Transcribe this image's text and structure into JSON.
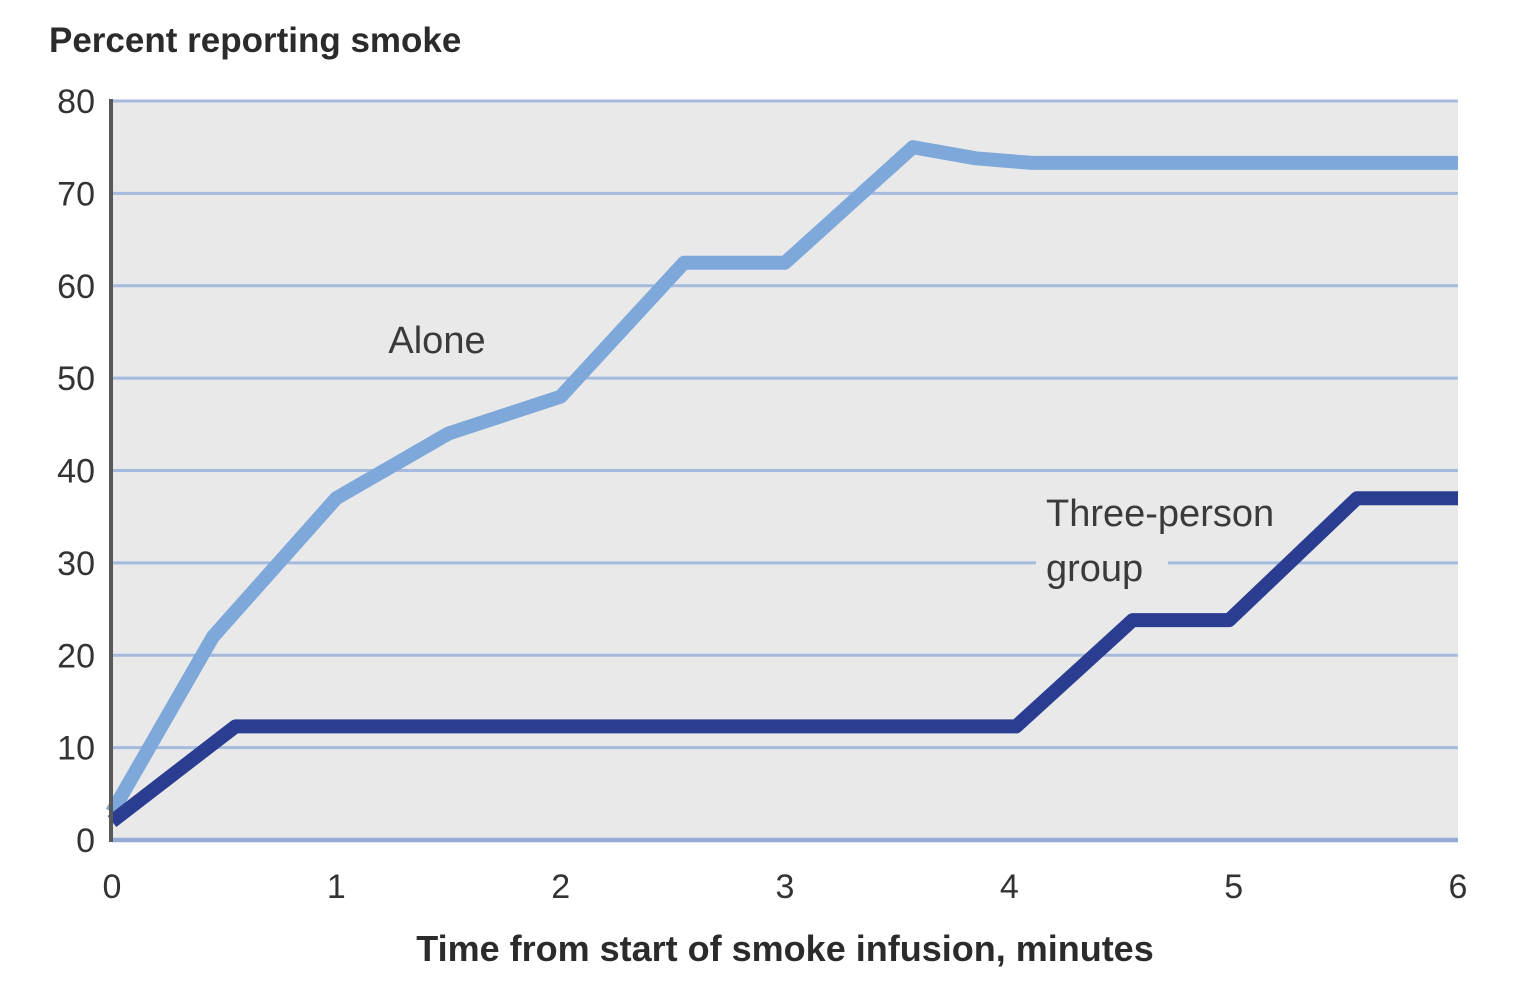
{
  "title": "Percent reporting smoke",
  "x_axis": {
    "label": "Time from start of smoke infusion, minutes"
  },
  "annotations": {
    "alone_label": "Alone",
    "group_label_line1": "Three-person",
    "group_label_line2": "group"
  },
  "colors": {
    "alone_line": "#7FA8DA",
    "three_person_line": "#2B3D91",
    "gridline": "#A6BADD",
    "baseline_gridline": "#93ABD5",
    "plot_background": "#E9E9E9",
    "axis_spine": "#58585A",
    "page_background": "#FFFFFF",
    "text": "#2B2B2B"
  },
  "chart_data": {
    "type": "line",
    "title": "Percent reporting smoke",
    "xlabel": "Time from start of smoke infusion, minutes",
    "ylabel": "Percent reporting smoke",
    "xlim": [
      0,
      6
    ],
    "ylim": [
      0,
      80
    ],
    "x_ticks": [
      0,
      1,
      2,
      3,
      4,
      5,
      6
    ],
    "y_ticks": [
      0,
      10,
      20,
      30,
      40,
      50,
      60,
      70,
      80
    ],
    "grid": "horizontal gridlines on",
    "legend_position": "inline labels next to lines",
    "series": [
      {
        "name": "Alone",
        "color": "#7FA8DA",
        "points": [
          [
            0,
            3
          ],
          [
            0.45,
            22
          ],
          [
            1,
            37
          ],
          [
            1.5,
            44
          ],
          [
            2,
            48
          ],
          [
            2.55,
            62.5
          ],
          [
            3,
            62.5
          ],
          [
            3.57,
            75
          ],
          [
            3.85,
            73.8
          ],
          [
            4.1,
            73.3
          ],
          [
            6,
            73.3
          ]
        ]
      },
      {
        "name": "Three-person group",
        "color": "#2B3D91",
        "points": [
          [
            0,
            2
          ],
          [
            0.55,
            12.3
          ],
          [
            4.03,
            12.3
          ],
          [
            4.55,
            23.8
          ],
          [
            4.98,
            23.8
          ],
          [
            5.55,
            37
          ],
          [
            6,
            37
          ]
        ]
      }
    ]
  }
}
